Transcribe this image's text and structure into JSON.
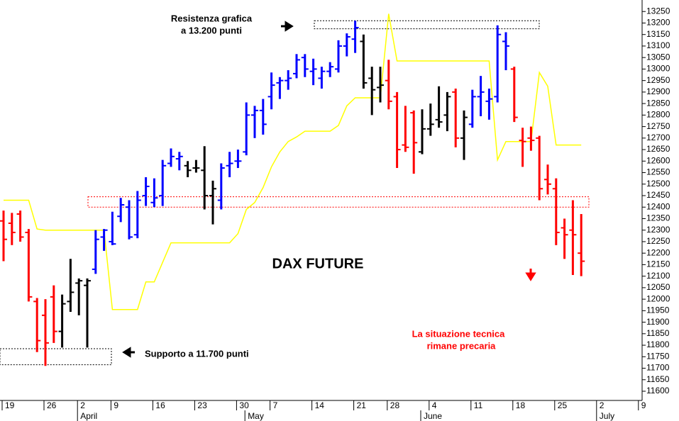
{
  "chart_data": {
    "type": "ohlc",
    "title": "DAX FUTURE",
    "annotations": [
      [
        "Resistenza grafica",
        "a 13.200 punti"
      ],
      [
        "Supporto a 11.700 punti"
      ],
      [
        "La situazione tecnica",
        "rimane precaria"
      ]
    ],
    "categories": [
      "19",
      null,
      null,
      null,
      null,
      "26",
      null,
      null,
      null,
      "2",
      null,
      null,
      null,
      "9",
      null,
      null,
      null,
      null,
      "16",
      null,
      null,
      null,
      null,
      "23",
      null,
      null,
      null,
      null,
      "30",
      null,
      null,
      null,
      "7",
      null,
      null,
      null,
      null,
      "14",
      null,
      null,
      null,
      null,
      "21",
      null,
      null,
      null,
      "28",
      null,
      null,
      null,
      null,
      "4",
      null,
      null,
      null,
      null,
      "11",
      null,
      null,
      null,
      null,
      "18",
      null,
      null,
      null,
      null,
      "25",
      null,
      null,
      null,
      null,
      "2",
      null,
      null,
      null,
      null,
      "9"
    ],
    "months": [
      null,
      null,
      null,
      null,
      null,
      null,
      null,
      null,
      null,
      "April",
      null,
      null,
      null,
      null,
      null,
      null,
      null,
      null,
      null,
      null,
      null,
      null,
      null,
      null,
      null,
      null,
      null,
      null,
      null,
      "May",
      null,
      null,
      null,
      null,
      null,
      null,
      null,
      null,
      null,
      null,
      null,
      null,
      null,
      null,
      null,
      null,
      null,
      null,
      null,
      null,
      "June",
      null,
      null,
      null,
      null,
      null,
      null,
      null,
      null,
      null,
      null,
      null,
      null,
      null,
      null,
      null,
      null,
      null,
      null,
      null,
      null,
      "July",
      null,
      null,
      null,
      null,
      null
    ],
    "ohlc": {
      "open": [
        12340,
        12330,
        12370,
        12290,
        11990,
        11930,
        12010,
        11860,
        11990,
        12070,
        12060,
        12130,
        12270,
        12250,
        12360,
        12400,
        12280,
        12450,
        12420,
        12450,
        12590,
        12610,
        12580,
        12570,
        12560,
        12450,
        12430,
        12580,
        12600,
        12640,
        12800,
        12820,
        12880,
        12940,
        12950,
        12980,
        13050,
        12990,
        12960,
        12990,
        13000,
        13100,
        13130,
        13120,
        12960,
        12920,
        12950,
        12880,
        12670,
        12810,
        12640,
        12740,
        12780,
        12800,
        12900,
        12700,
        12760,
        12880,
        12860,
        12880,
        13120,
        13000,
        12690,
        12700,
        12700,
        12520,
        12480,
        12310,
        12300,
        12200,
        null,
        null,
        null,
        null,
        null,
        null,
        null
      ],
      "high": [
        12385,
        12375,
        12385,
        12305,
        12005,
        12000,
        12060,
        12020,
        12175,
        12090,
        12090,
        12300,
        12305,
        12380,
        12440,
        12430,
        12470,
        12530,
        12525,
        12605,
        12655,
        12640,
        12600,
        12605,
        12665,
        12515,
        12590,
        12640,
        12650,
        12855,
        12840,
        12870,
        12985,
        12965,
        12995,
        13065,
        13065,
        13045,
        13010,
        13030,
        13125,
        13155,
        13210,
        13150,
        13010,
        13010,
        13040,
        12900,
        12840,
        12820,
        12825,
        12850,
        12925,
        12900,
        12915,
        12820,
        12910,
        12970,
        12915,
        13190,
        13160,
        13010,
        12745,
        12750,
        12710,
        12585,
        12525,
        12350,
        12430,
        12370,
        null,
        null,
        null,
        null,
        null,
        null,
        null
      ],
      "low": [
        12165,
        12235,
        12250,
        11990,
        11770,
        11710,
        11810,
        11790,
        11945,
        11930,
        11790,
        12110,
        12210,
        12235,
        12335,
        12260,
        12265,
        12405,
        12400,
        12405,
        12575,
        12560,
        12530,
        12550,
        12390,
        12325,
        12390,
        12530,
        12570,
        12625,
        12700,
        12715,
        12825,
        12870,
        12910,
        12960,
        12965,
        12930,
        12915,
        12965,
        12985,
        13055,
        13070,
        12915,
        12800,
        12855,
        12825,
        12570,
        12640,
        12545,
        12630,
        12710,
        12745,
        12730,
        12660,
        12605,
        12745,
        12795,
        12780,
        12855,
        12995,
        12770,
        12575,
        12645,
        12430,
        12455,
        12235,
        12175,
        12105,
        12100,
        null,
        null,
        null,
        null,
        null,
        null,
        null
      ],
      "close": [
        12260,
        12290,
        12270,
        12010,
        11820,
        11810,
        11860,
        11980,
        12030,
        12080,
        12080,
        12260,
        12300,
        12240,
        12410,
        12270,
        12430,
        12490,
        12440,
        12580,
        12620,
        12620,
        12560,
        12570,
        12450,
        12480,
        12570,
        12590,
        12600,
        12800,
        12820,
        12760,
        12930,
        12950,
        12960,
        13040,
        13000,
        13000,
        12990,
        13010,
        13100,
        13140,
        13180,
        12940,
        12910,
        12930,
        12860,
        12650,
        12660,
        12680,
        12740,
        12760,
        12770,
        12880,
        12700,
        12790,
        12880,
        12900,
        12870,
        13150,
        13100,
        12790,
        12685,
        12690,
        12480,
        12500,
        12290,
        12280,
        12280,
        12165,
        null,
        null,
        null,
        null,
        null,
        null,
        null
      ],
      "colors": [
        "#ff0000",
        "#ff0000",
        "#ff0000",
        "#ff0000",
        "#ff0000",
        "#ff0000",
        "#ff0000",
        "#000000",
        "#000000",
        "#000000",
        "#000000",
        "#0000ff",
        "#0000ff",
        "#0000ff",
        "#0000ff",
        "#0000ff",
        "#0000ff",
        "#0000ff",
        "#0000ff",
        "#0000ff",
        "#0000ff",
        "#0000ff",
        "#000000",
        "#000000",
        "#000000",
        "#000000",
        "#0000ff",
        "#0000ff",
        "#0000ff",
        "#0000ff",
        "#0000ff",
        "#0000ff",
        "#0000ff",
        "#0000ff",
        "#0000ff",
        "#0000ff",
        "#0000ff",
        "#0000ff",
        "#0000ff",
        "#0000ff",
        "#0000ff",
        "#0000ff",
        "#0000ff",
        "#000000",
        "#000000",
        "#000000",
        "#ff0000",
        "#ff0000",
        "#ff0000",
        "#ff0000",
        "#000000",
        "#000000",
        "#000000",
        "#000000",
        "#ff0000",
        "#000000",
        "#0000ff",
        "#0000ff",
        "#0000ff",
        "#0000ff",
        "#0000ff",
        "#ff0000",
        "#ff0000",
        "#ff0000",
        "#ff0000",
        "#ff0000",
        "#ff0000",
        "#ff0000",
        "#ff0000",
        "#ff0000",
        null,
        null,
        null,
        null,
        null,
        null,
        null
      ]
    },
    "line": {
      "color": "#ffff00",
      "values": [
        12430,
        12430,
        12430,
        12430,
        12305,
        12300,
        12300,
        12300,
        12300,
        12300,
        12300,
        12300,
        12300,
        11955,
        11955,
        11955,
        11955,
        12075,
        12075,
        12160,
        12245,
        12245,
        12245,
        12245,
        12245,
        12245,
        12245,
        12245,
        12285,
        12390,
        12420,
        12485,
        12575,
        12640,
        12685,
        12705,
        12730,
        12730,
        12730,
        12730,
        12755,
        12840,
        12875,
        12875,
        12875,
        12875,
        13240,
        13035,
        13035,
        13035,
        13035,
        13035,
        13035,
        13035,
        13035,
        13035,
        13035,
        13035,
        13035,
        12605,
        12685,
        12685,
        12685,
        12685,
        12985,
        12925,
        12670,
        12670,
        12670,
        12670,
        null,
        null,
        null,
        null,
        null,
        null,
        null
      ]
    },
    "zones": [
      {
        "low": 13175,
        "high": 13210,
        "color": "#000000"
      },
      {
        "low": 12400,
        "high": 12445,
        "color": "#ff0000"
      },
      {
        "low": 11715,
        "high": 11785,
        "color": "#000000"
      }
    ],
    "ylim": [
      11560,
      13300
    ],
    "yticks": [
      11600,
      11650,
      11700,
      11750,
      11800,
      11850,
      11900,
      11950,
      12000,
      12050,
      12100,
      12150,
      12200,
      12250,
      12300,
      12350,
      12400,
      12450,
      12500,
      12550,
      12600,
      12650,
      12700,
      12750,
      12800,
      12850,
      12900,
      12950,
      13000,
      13050,
      13100,
      13150,
      13200,
      13250
    ]
  }
}
